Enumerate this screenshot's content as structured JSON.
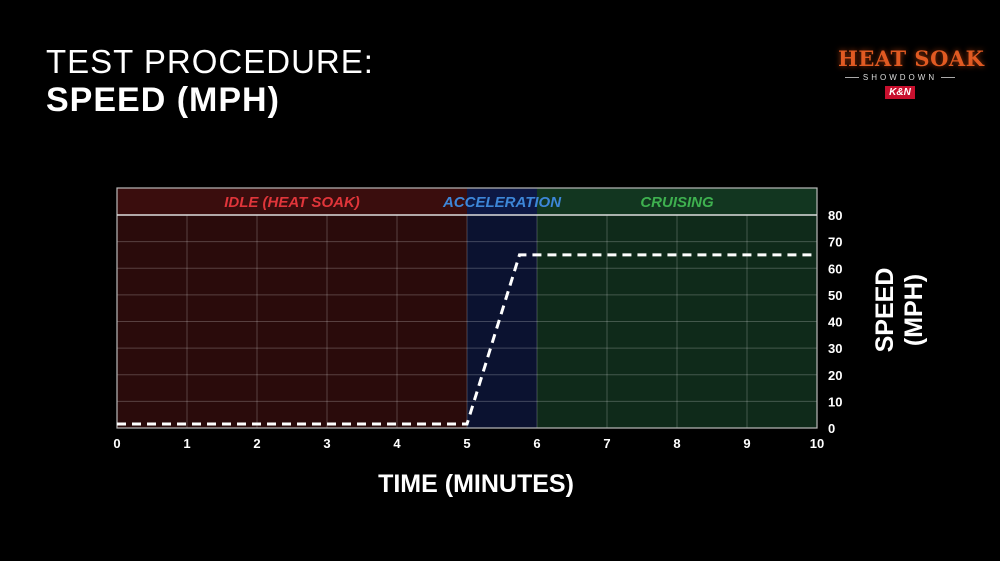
{
  "header": {
    "title_line1": "TEST PROCEDURE:",
    "title_line2": "SPEED (MPH)"
  },
  "logo": {
    "main": "HEAT SOAK",
    "sub": "SHOWDOWN",
    "brand": "K&N"
  },
  "chart_data": {
    "type": "line",
    "xlabel": "TIME (MINUTES)",
    "ylabel": "SPEED (MPH)",
    "xlim": [
      0,
      10
    ],
    "ylim": [
      0,
      80
    ],
    "x_ticks": [
      "0",
      "1",
      "2",
      "3",
      "4",
      "5",
      "6",
      "7",
      "8",
      "9",
      "10"
    ],
    "y_ticks": [
      "0",
      "10",
      "20",
      "30",
      "40",
      "50",
      "60",
      "70",
      "80"
    ],
    "grid": true,
    "phases": [
      {
        "label": "IDLE (HEAT SOAK)",
        "x_start": 0,
        "x_end": 5,
        "fill": "#2a0b0b",
        "header_fill": "#3a0d0d",
        "label_color": "#e0353a"
      },
      {
        "label": "ACCELERATION",
        "x_start": 5,
        "x_end": 6,
        "fill": "#0b1230",
        "header_fill": "#0d1844",
        "label_color": "#3d86d8"
      },
      {
        "label": "CRUISING",
        "x_start": 6,
        "x_end": 10,
        "fill": "#0f2a1a",
        "header_fill": "#123620",
        "label_color": "#3eb04f"
      }
    ],
    "series": [
      {
        "points": [
          [
            0,
            1.5
          ],
          [
            5,
            1.5
          ],
          [
            5.75,
            65
          ],
          [
            10,
            65
          ]
        ],
        "style": "dashed",
        "color": "#ffffff"
      }
    ]
  }
}
